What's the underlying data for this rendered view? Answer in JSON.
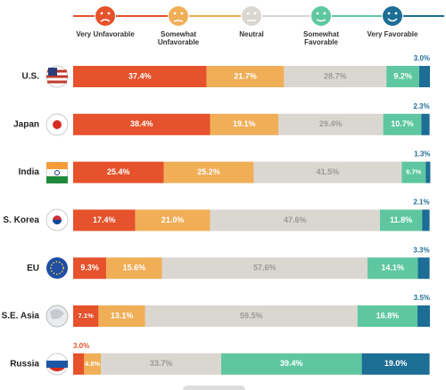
{
  "chart_data": {
    "type": "stacked-bar-horizontal",
    "categories": [
      "U.S.",
      "Japan",
      "India",
      "S. Korea",
      "EU",
      "S.E. Asia",
      "Russia"
    ],
    "xlim": [
      0,
      100
    ],
    "series": [
      {
        "name": "Very Unfavorable",
        "color": "#e5522b",
        "values": [
          37.4,
          38.4,
          25.4,
          17.4,
          9.3,
          7.1,
          3.0
        ],
        "value_labels": [
          "37.4%",
          "38.4%",
          "25.4%",
          "17.4%",
          "9.3%",
          "7.1%",
          "3.0%"
        ]
      },
      {
        "name": "Somewhat Unfavorable",
        "color": "#f0ae57",
        "values": [
          21.7,
          19.1,
          25.2,
          21.0,
          15.6,
          13.1,
          4.8
        ],
        "value_labels": [
          "21.7%",
          "19.1%",
          "25.2%",
          "21.0%",
          "15.6%",
          "13.1%",
          "4.8%"
        ]
      },
      {
        "name": "Neutral",
        "color": "#dad7d0",
        "values": [
          28.7,
          29.4,
          41.5,
          47.6,
          57.6,
          59.5,
          33.7
        ],
        "value_labels": [
          "28.7%",
          "29.4%",
          "41.5%",
          "47.6%",
          "57.6%",
          "59.5%",
          "33.7%"
        ]
      },
      {
        "name": "Somewhat Favorable",
        "color": "#5ec7a1",
        "values": [
          9.2,
          10.7,
          6.7,
          11.8,
          14.1,
          16.8,
          39.4
        ],
        "value_labels": [
          "9.2%",
          "10.7%",
          "6.7%",
          "11.8%",
          "14.1%",
          "16.8%",
          "39.4%"
        ]
      },
      {
        "name": "Very Favorable",
        "color": "#1d6e95",
        "values": [
          3.0,
          2.3,
          1.3,
          2.1,
          3.3,
          3.5,
          19.0
        ],
        "value_labels": [
          "3.0%",
          "2.3%",
          "1.3%",
          "2.1%",
          "3.3%",
          "3.5%",
          "19.0%"
        ]
      }
    ]
  }
}
